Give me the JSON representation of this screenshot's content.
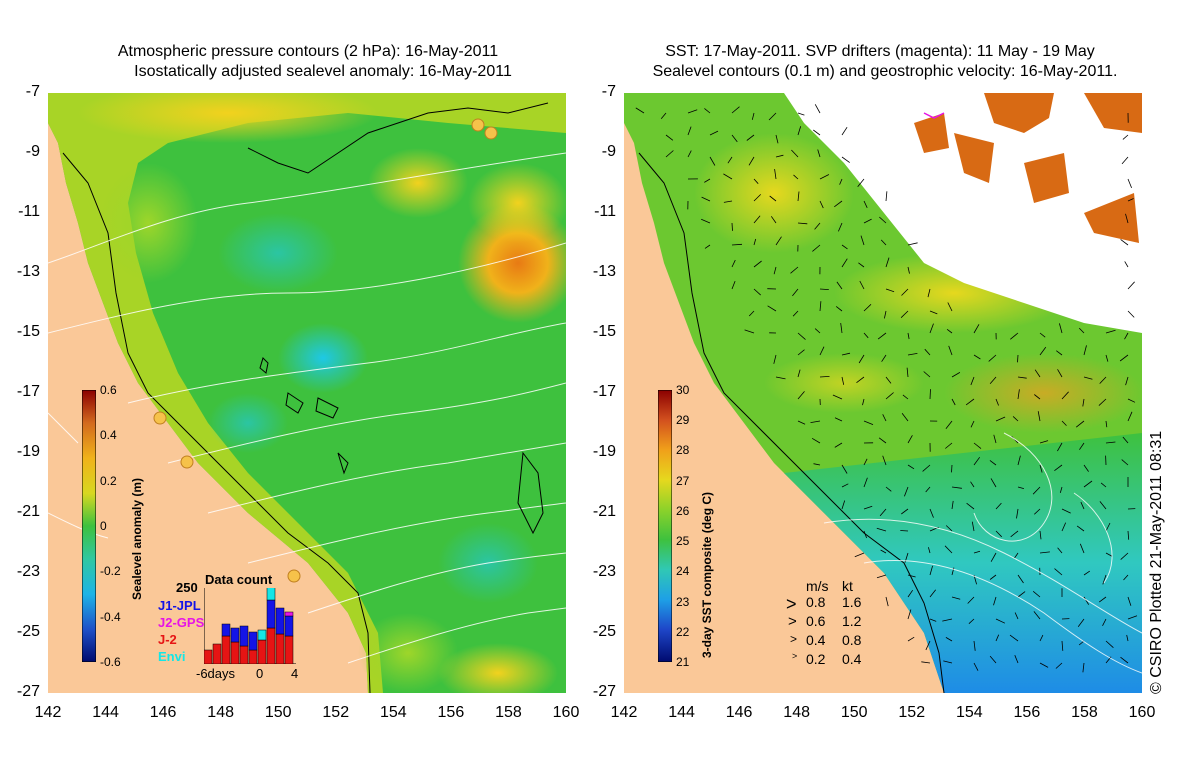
{
  "left_panel": {
    "title_line1": "Atmospheric pressure contours (2 hPa): 16-May-2011",
    "title_line2": "Isostatically adjusted sealevel anomaly: 16-May-2011",
    "colorbar": {
      "label": "Sealevel anomaly (m)",
      "ticks": [
        "0.6",
        "0.4",
        "0.2",
        "0",
        "-0.2",
        "-0.4",
        "-0.6"
      ],
      "range": [
        -0.6,
        0.6
      ]
    },
    "data_count": {
      "title": "Data count",
      "max_label": "250",
      "x_labels": [
        "-6days",
        "0",
        "4"
      ],
      "series": [
        {
          "name": "J1-JPL",
          "color": "#1414e6"
        },
        {
          "name": "J2-GPS",
          "color": "#e614e6"
        },
        {
          "name": "J-2",
          "color": "#e61414"
        },
        {
          "name": "Envi",
          "color": "#14e6e6"
        }
      ]
    }
  },
  "right_panel": {
    "title_line1": "SST: 17-May-2011. SVP drifters (magenta): 11 May - 19 May",
    "title_line2": "Sealevel contours (0.1 m) and geostrophic velocity: 16-May-2011.",
    "colorbar": {
      "label": "3-day SST composite (deg C)",
      "ticks": [
        "30",
        "29",
        "28",
        "27",
        "26",
        "25",
        "24",
        "23",
        "22",
        "21"
      ],
      "range": [
        21,
        30
      ]
    },
    "velocity_key": {
      "header_ms": "m/s",
      "header_kt": "kt",
      "rows": [
        {
          "ms": "0.8",
          "kt": "1.6"
        },
        {
          "ms": "0.6",
          "kt": "1.2"
        },
        {
          "ms": "0.4",
          "kt": "0.8"
        },
        {
          "ms": "0.2",
          "kt": "0.4"
        }
      ]
    }
  },
  "axes": {
    "y_ticks": [
      "-7",
      "-9",
      "-11",
      "-13",
      "-15",
      "-17",
      "-19",
      "-21",
      "-23",
      "-25",
      "-27"
    ],
    "x_ticks": [
      "142",
      "144",
      "146",
      "148",
      "150",
      "152",
      "154",
      "156",
      "158",
      "160"
    ]
  },
  "credit": "© CSIRO Plotted 21-May-2011 08:31",
  "colors": {
    "land": "#fac898",
    "sea_green": "#3ec13e",
    "sea_yellow": "#e6d81e",
    "no_data": "#ffffff"
  }
}
